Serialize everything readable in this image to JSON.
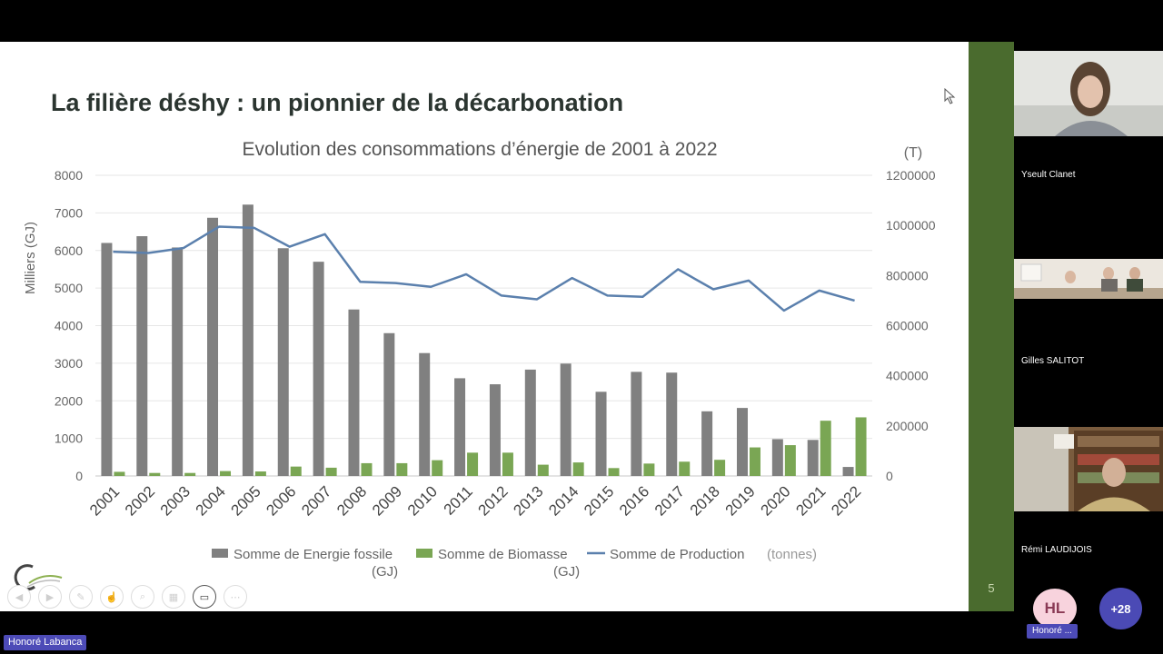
{
  "slide": {
    "title": "La filière déshy : un pionnier de la décarbonation",
    "number": "5"
  },
  "chart_data": {
    "type": "bar",
    "title": "Evolution des consommations d’énergie de 2001 à 2022",
    "ylabel": "Milliers (GJ)",
    "y2label": "(T)",
    "categories": [
      "2001",
      "2002",
      "2003",
      "2004",
      "2005",
      "2006",
      "2007",
      "2008",
      "2009",
      "2010",
      "2011",
      "2012",
      "2013",
      "2014",
      "2015",
      "2016",
      "2017",
      "2018",
      "2019",
      "2020",
      "2021",
      "2022"
    ],
    "ylim": [
      0,
      8000
    ],
    "yticks": [
      "0",
      "1000",
      "2000",
      "3000",
      "4000",
      "5000",
      "6000",
      "7000",
      "8000"
    ],
    "y2lim": [
      0,
      1200000
    ],
    "y2ticks": [
      "0",
      "200000",
      "400000",
      "600000",
      "800000",
      "1000000",
      "1200000"
    ],
    "grid": true,
    "legend_position": "bottom",
    "colors": {
      "fossile": "#808080",
      "biomasse": "#7aa654",
      "production": "#5b80ad"
    },
    "series": [
      {
        "name": "Somme de Energie fossile (GJ)",
        "legend_main": "Somme de Energie fossile",
        "legend_unit": "(GJ)",
        "type": "bar",
        "axis": "left",
        "values": [
          6200,
          6380,
          6080,
          6870,
          7220,
          6060,
          5700,
          4430,
          3800,
          3270,
          2600,
          2440,
          2830,
          2990,
          2240,
          2770,
          2750,
          1720,
          1810,
          980,
          960,
          240
        ]
      },
      {
        "name": "Somme de Biomasse (GJ)",
        "legend_main": "Somme de Biomasse",
        "legend_unit": "(GJ)",
        "type": "bar",
        "axis": "left",
        "values": [
          110,
          80,
          80,
          130,
          120,
          250,
          220,
          340,
          340,
          420,
          620,
          620,
          300,
          360,
          210,
          330,
          380,
          430,
          760,
          820,
          1470,
          1560
        ]
      },
      {
        "name": "Somme de Production (tonnes)",
        "legend_main": "Somme de Production",
        "legend_unit": "(tonnes)",
        "type": "line",
        "axis": "right",
        "values": [
          895000,
          890000,
          910000,
          995000,
          990000,
          915000,
          965000,
          775000,
          770000,
          755000,
          805000,
          720000,
          705000,
          790000,
          720000,
          715000,
          825000,
          745000,
          780000,
          660000,
          740000,
          700000
        ]
      }
    ]
  },
  "participants": [
    {
      "name": "Yseult Clanet"
    },
    {
      "name": "Gilles SALITOT"
    },
    {
      "name": "Rémi LAUDIJOIS"
    }
  ],
  "avatar": {
    "initials": "HL",
    "name": "Honoré ..."
  },
  "more_participants": "+28",
  "presenter": "Honoré Labanca"
}
